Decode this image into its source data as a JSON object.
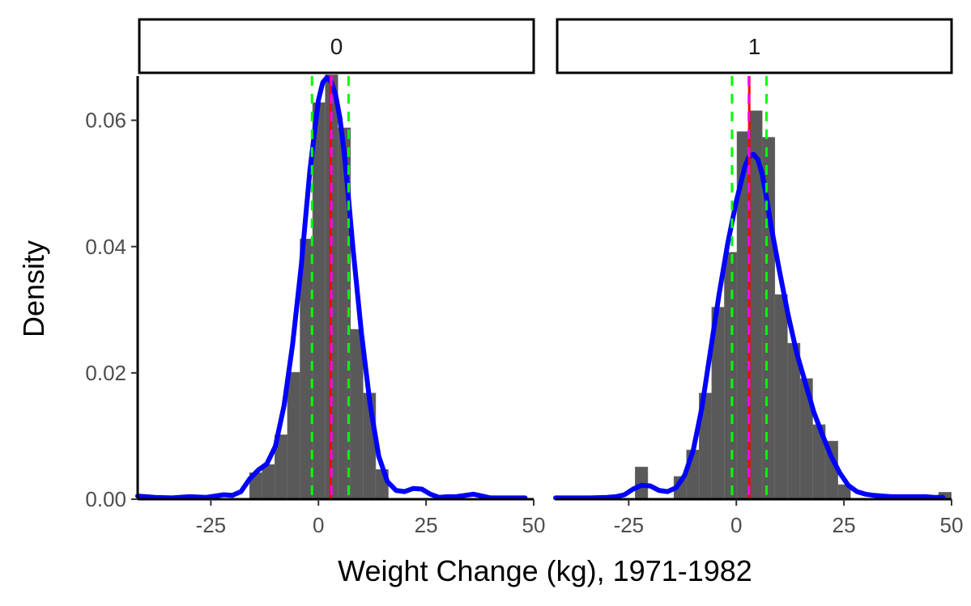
{
  "chart_data": {
    "type": "histogram",
    "facet_variable_values": [
      "0",
      "1"
    ],
    "xlabel": "Weight Change (kg), 1971-1982",
    "ylabel": "Density",
    "xlim": [
      -42,
      50
    ],
    "ylim": [
      0,
      0.067
    ],
    "x_ticks": [
      -25,
      0,
      25,
      50
    ],
    "x_tick_labels": [
      "-25",
      "0",
      "25",
      "50"
    ],
    "y_ticks": [
      0.0,
      0.02,
      0.04,
      0.06
    ],
    "y_tick_labels": [
      "0.00",
      "0.02",
      "0.04",
      "0.06"
    ],
    "grid": false,
    "colors": {
      "bars": "#595959",
      "density": "#0000ff",
      "mean_line": "#ff0000",
      "median_line": "#ff00ff",
      "quartile_lines": "#00ff00"
    },
    "panels": [
      {
        "strip_label": "0",
        "bin_width": 2.93,
        "bins_left": [
          -16.0,
          -13.07,
          -10.14,
          -7.21,
          -4.28,
          -1.35,
          1.58,
          4.51,
          7.44,
          10.37,
          13.3
        ],
        "bins_density": [
          0.0042,
          0.0055,
          0.0102,
          0.0201,
          0.0412,
          0.0628,
          0.0672,
          0.0588,
          0.0269,
          0.0168,
          0.0047
        ],
        "density_curve": {
          "x": [
            -42,
            -38,
            -34,
            -30,
            -26,
            -22,
            -20,
            -18,
            -16,
            -14,
            -12,
            -10,
            -8,
            -6,
            -4,
            -2,
            0,
            1,
            2,
            3,
            4,
            5,
            6,
            7,
            8,
            10,
            12,
            14,
            16,
            18,
            20,
            22,
            24,
            26,
            28,
            30,
            32,
            34,
            36,
            38,
            40,
            42,
            44,
            46,
            48
          ],
          "y": [
            0.0005,
            0.0003,
            0.0002,
            0.0004,
            0.0003,
            0.0007,
            0.0006,
            0.0012,
            0.0032,
            0.0046,
            0.0056,
            0.0084,
            0.0148,
            0.0245,
            0.037,
            0.052,
            0.0632,
            0.066,
            0.0668,
            0.066,
            0.064,
            0.0603,
            0.0548,
            0.0476,
            0.0398,
            0.0262,
            0.015,
            0.0068,
            0.0028,
            0.0014,
            0.0012,
            0.0017,
            0.0016,
            0.0008,
            0.0003,
            0.0004,
            0.0004,
            0.0006,
            0.0008,
            0.0005,
            0.0002,
            0.0002,
            0.0002,
            0.0002,
            0.0002
          ]
        },
        "mean": 2.8,
        "median": 3.0,
        "quartiles": [
          -1.5,
          7.0
        ]
      },
      {
        "strip_label": "1",
        "bin_width": 2.93,
        "bins_left": [
          -23.5,
          -14.5,
          -11.57,
          -8.64,
          -5.71,
          -2.78,
          0.15,
          3.08,
          6.01,
          8.94,
          11.87,
          14.8,
          17.73,
          20.66,
          23.59,
          47.0
        ],
        "bins_density": [
          0.0051,
          0.0036,
          0.0078,
          0.0168,
          0.0304,
          0.0391,
          0.0582,
          0.0615,
          0.0573,
          0.0324,
          0.0247,
          0.0191,
          0.0118,
          0.0092,
          0.0023,
          0.0011
        ],
        "density_curve": {
          "x": [
            -42,
            -38,
            -34,
            -30,
            -28,
            -26,
            -24,
            -22,
            -20,
            -18,
            -16,
            -14,
            -12,
            -10,
            -8,
            -6,
            -4,
            -2,
            0,
            2,
            3,
            4,
            5,
            6,
            7,
            8,
            10,
            12,
            14,
            16,
            18,
            20,
            22,
            24,
            26,
            28,
            30,
            32,
            34,
            36,
            38,
            40,
            42,
            44,
            46,
            48
          ],
          "y": [
            0.0002,
            0.0002,
            0.0002,
            0.0003,
            0.0004,
            0.0007,
            0.0016,
            0.0022,
            0.0021,
            0.0014,
            0.0012,
            0.0018,
            0.0038,
            0.0078,
            0.0145,
            0.0235,
            0.0325,
            0.0405,
            0.0472,
            0.0527,
            0.0543,
            0.0546,
            0.0538,
            0.0515,
            0.0478,
            0.0435,
            0.0362,
            0.0293,
            0.0232,
            0.0185,
            0.0138,
            0.0102,
            0.0068,
            0.0042,
            0.0022,
            0.0012,
            0.0008,
            0.0006,
            0.0005,
            0.0004,
            0.0004,
            0.0004,
            0.0004,
            0.0004,
            0.0003,
            0.0003
          ]
        },
        "mean": 3.0,
        "median": 2.9,
        "quartiles": [
          -1.0,
          7.0
        ]
      }
    ]
  }
}
